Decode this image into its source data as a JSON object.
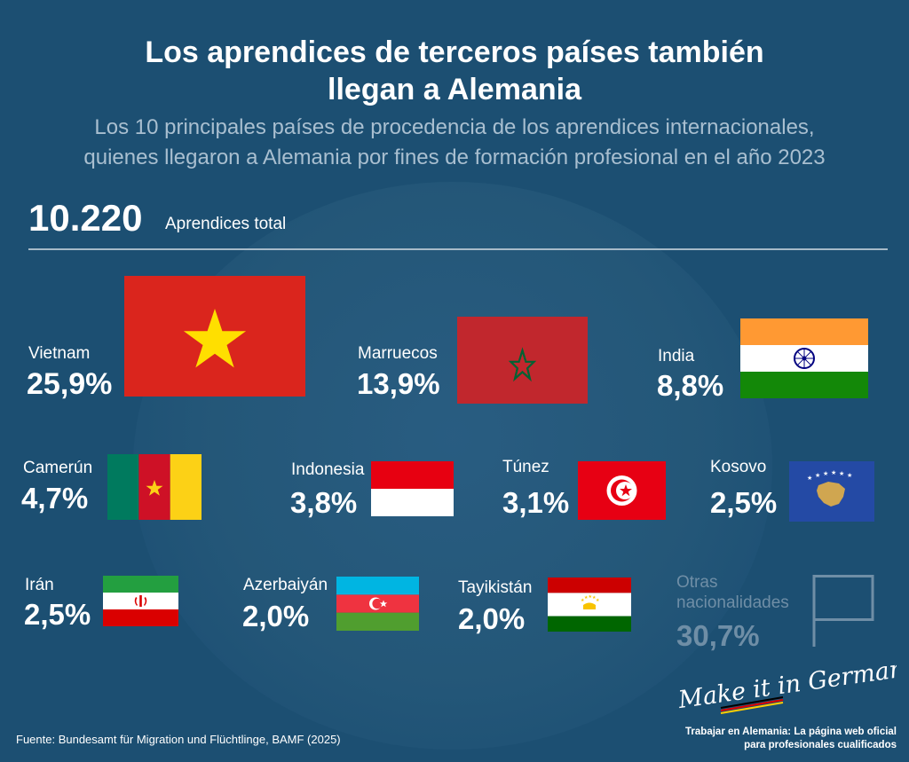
{
  "title_line1": "Los aprendices de terceros países también",
  "title_line2": "llegan a Alemania",
  "subtitle_line1": "Los 10 principales países de procedencia de los aprendices internacionales,",
  "subtitle_line2": "quienes llegaron a Alemania por fines de formación profesional en el año 2023",
  "total": {
    "value": "10.220",
    "label": "Aprendices total"
  },
  "chart_data": {
    "type": "table",
    "unit": "%",
    "total_apprentices": 10220,
    "items": [
      {
        "country": "Vietnam",
        "share": 25.9,
        "label": "25,9%",
        "flag": "vietnam-flag"
      },
      {
        "country": "Marruecos",
        "share": 13.9,
        "label": "13,9%",
        "flag": "morocco-flag"
      },
      {
        "country": "India",
        "share": 8.8,
        "label": "8,8%",
        "flag": "india-flag"
      },
      {
        "country": "Camerún",
        "share": 4.7,
        "label": "4,7%",
        "flag": "cameroon-flag"
      },
      {
        "country": "Indonesia",
        "share": 3.8,
        "label": "3,8%",
        "flag": "indonesia-flag"
      },
      {
        "country": "Túnez",
        "share": 3.1,
        "label": "3,1%",
        "flag": "tunisia-flag"
      },
      {
        "country": "Kosovo",
        "share": 2.5,
        "label": "2,5%",
        "flag": "kosovo-flag"
      },
      {
        "country": "Irán",
        "share": 2.5,
        "label": "2,5%",
        "flag": "iran-flag"
      },
      {
        "country": "Azerbaiyán",
        "share": 2.0,
        "label": "2,0%",
        "flag": "azerbaijan-flag"
      },
      {
        "country": "Tayikistán",
        "share": 2.0,
        "label": "2,0%",
        "flag": "tajikistan-flag"
      }
    ],
    "others": {
      "line1": "Otras",
      "line2": "nacionalidades",
      "share": 30.7,
      "label": "30,7%",
      "flag": "blank-flag"
    }
  },
  "colors": {
    "background": "#1c4f72",
    "others_text": "#6f8ea6",
    "subtitle_text": "#a9bfd0"
  },
  "logo_text": "Make it in Germany",
  "slogan_line1": "Trabajar en Alemania: La página web oficial",
  "slogan_line2": "para profesionales cualificados",
  "source": "Fuente: Bundesamt für Migration und Flüchtlinge, BAMF (2025)"
}
